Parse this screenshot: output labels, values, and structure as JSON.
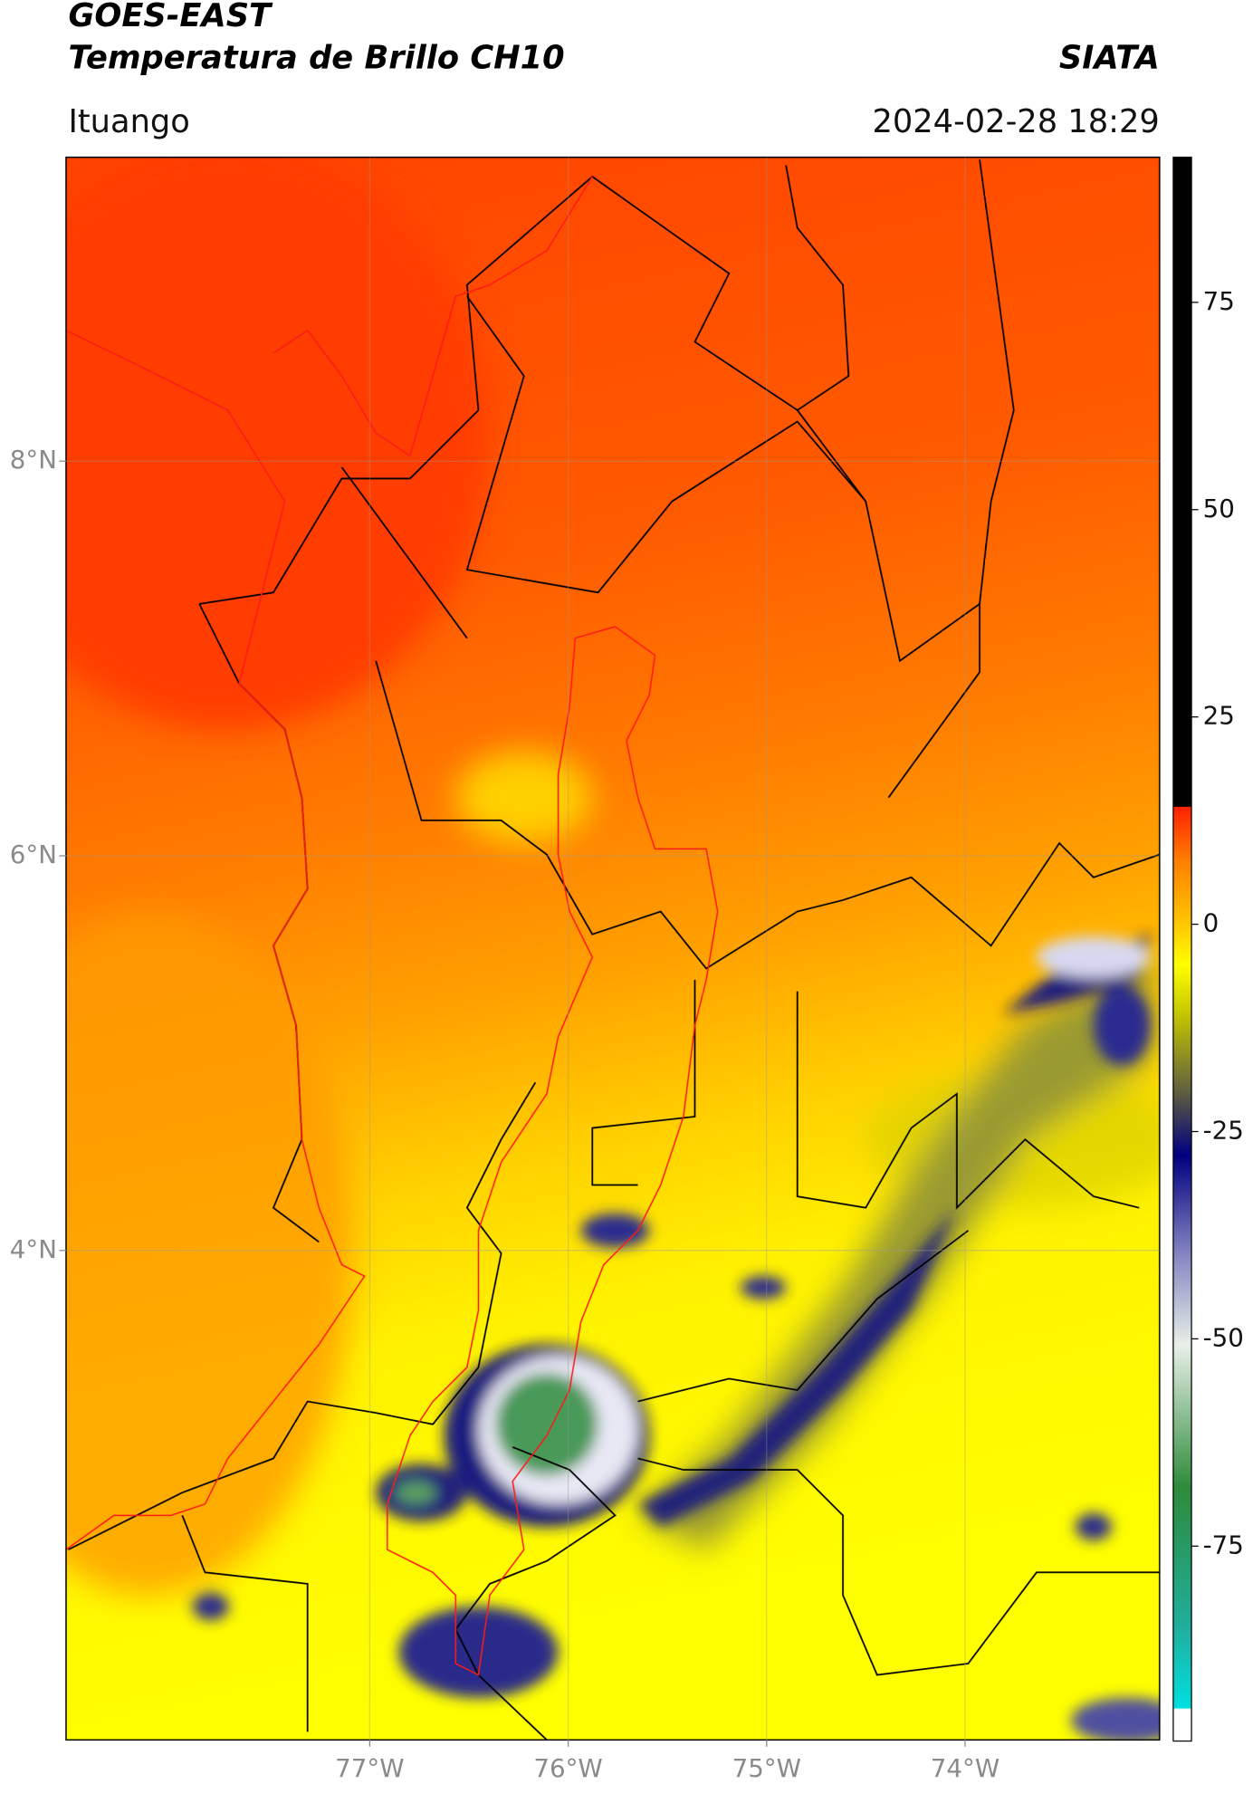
{
  "chart_data": {
    "type": "map",
    "title": "GOES-EAST",
    "subtitle": "Temperatura de Brillo CH10",
    "source": "SIATA",
    "location": "Ituango",
    "datetime": "2024-02-28 18:29",
    "xlim": [
      -78.53,
      -73.02
    ],
    "ylim": [
      1.52,
      9.54
    ],
    "xticks": [
      {
        "value": -77,
        "label": "77°W"
      },
      {
        "value": -76,
        "label": "76°W"
      },
      {
        "value": -75,
        "label": "75°W"
      },
      {
        "value": -74,
        "label": "74°W"
      }
    ],
    "yticks": [
      {
        "value": 4,
        "label": "4°N"
      },
      {
        "value": 6,
        "label": "6°N"
      },
      {
        "value": 8,
        "label": "8°N"
      }
    ],
    "grid": true,
    "colorbar": {
      "lim": [
        -98.5,
        92.5
      ],
      "ticks": [
        -75,
        -50,
        -25,
        0,
        25,
        50,
        75
      ]
    }
  }
}
